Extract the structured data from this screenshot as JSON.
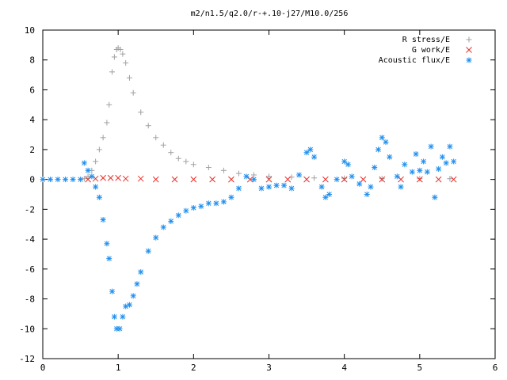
{
  "chart_data": {
    "type": "scatter",
    "title": "m2/n1.5/q2.0/r-+.10-j27/M10.0/256",
    "xlabel": "",
    "ylabel": "",
    "xlim": [
      0,
      6
    ],
    "ylim": [
      -12,
      10
    ],
    "x_ticks": [
      "0",
      "1",
      "2",
      "3",
      "4",
      "5",
      "6"
    ],
    "y_ticks": [
      "-12",
      "-10",
      "-8",
      "-6",
      "-4",
      "-2",
      "0",
      "2",
      "4",
      "6",
      "8",
      "10"
    ],
    "grid": false,
    "legend_position": "top-right",
    "series": [
      {
        "name": "R stress/E",
        "marker": "plus",
        "color": "#a0a0a0",
        "points": [
          [
            0.55,
            0.05
          ],
          [
            0.6,
            0.2
          ],
          [
            0.65,
            0.6
          ],
          [
            0.7,
            1.2
          ],
          [
            0.75,
            2.0
          ],
          [
            0.8,
            2.8
          ],
          [
            0.85,
            3.8
          ],
          [
            0.88,
            5.0
          ],
          [
            0.92,
            7.2
          ],
          [
            0.95,
            8.2
          ],
          [
            0.98,
            8.7
          ],
          [
            1.0,
            8.8
          ],
          [
            1.03,
            8.7
          ],
          [
            1.06,
            8.4
          ],
          [
            1.1,
            7.8
          ],
          [
            1.15,
            6.8
          ],
          [
            1.2,
            5.8
          ],
          [
            1.3,
            4.5
          ],
          [
            1.4,
            3.6
          ],
          [
            1.5,
            2.8
          ],
          [
            1.6,
            2.3
          ],
          [
            1.7,
            1.8
          ],
          [
            1.8,
            1.4
          ],
          [
            1.9,
            1.2
          ],
          [
            2.0,
            1.0
          ],
          [
            2.2,
            0.8
          ],
          [
            2.4,
            0.6
          ],
          [
            2.6,
            0.4
          ],
          [
            2.8,
            0.3
          ],
          [
            3.0,
            0.2
          ],
          [
            3.3,
            0.15
          ],
          [
            3.6,
            0.1
          ],
          [
            4.0,
            0.08
          ],
          [
            4.5,
            0.05
          ],
          [
            5.0,
            0.05
          ],
          [
            5.4,
            0.05
          ]
        ]
      },
      {
        "name": "G work/E",
        "marker": "cross",
        "color": "#e8302a",
        "points": [
          [
            0.6,
            0.0
          ],
          [
            0.7,
            0.05
          ],
          [
            0.8,
            0.1
          ],
          [
            0.9,
            0.1
          ],
          [
            1.0,
            0.1
          ],
          [
            1.1,
            0.05
          ],
          [
            1.3,
            0.05
          ],
          [
            1.5,
            0.0
          ],
          [
            1.75,
            0.0
          ],
          [
            2.0,
            0.0
          ],
          [
            2.25,
            0.0
          ],
          [
            2.5,
            0.0
          ],
          [
            2.75,
            0.0
          ],
          [
            3.0,
            0.0
          ],
          [
            3.25,
            0.0
          ],
          [
            3.5,
            0.0
          ],
          [
            3.75,
            0.0
          ],
          [
            4.0,
            0.0
          ],
          [
            4.25,
            0.0
          ],
          [
            4.5,
            0.0
          ],
          [
            4.75,
            0.0
          ],
          [
            5.0,
            0.0
          ],
          [
            5.25,
            0.0
          ],
          [
            5.45,
            0.0
          ]
        ]
      },
      {
        "name": "Acoustic flux/E",
        "marker": "star",
        "color": "#1f8ff0",
        "points": [
          [
            0.0,
            0.0
          ],
          [
            0.1,
            0.0
          ],
          [
            0.2,
            0.0
          ],
          [
            0.3,
            0.0
          ],
          [
            0.4,
            0.0
          ],
          [
            0.5,
            0.0
          ],
          [
            0.55,
            1.1
          ],
          [
            0.6,
            0.6
          ],
          [
            0.65,
            0.2
          ],
          [
            0.7,
            -0.5
          ],
          [
            0.75,
            -1.2
          ],
          [
            0.8,
            -2.7
          ],
          [
            0.85,
            -4.3
          ],
          [
            0.88,
            -5.3
          ],
          [
            0.92,
            -7.5
          ],
          [
            0.95,
            -9.2
          ],
          [
            0.98,
            -10.0
          ],
          [
            1.02,
            -10.0
          ],
          [
            1.06,
            -9.2
          ],
          [
            1.1,
            -8.5
          ],
          [
            1.15,
            -8.4
          ],
          [
            1.2,
            -7.8
          ],
          [
            1.25,
            -7.0
          ],
          [
            1.3,
            -6.2
          ],
          [
            1.4,
            -4.8
          ],
          [
            1.5,
            -3.9
          ],
          [
            1.6,
            -3.2
          ],
          [
            1.7,
            -2.8
          ],
          [
            1.8,
            -2.4
          ],
          [
            1.9,
            -2.1
          ],
          [
            2.0,
            -1.9
          ],
          [
            2.1,
            -1.8
          ],
          [
            2.2,
            -1.6
          ],
          [
            2.3,
            -1.6
          ],
          [
            2.4,
            -1.5
          ],
          [
            2.5,
            -1.2
          ],
          [
            2.6,
            -0.6
          ],
          [
            2.7,
            0.2
          ],
          [
            2.8,
            0.0
          ],
          [
            2.9,
            -0.6
          ],
          [
            3.0,
            -0.5
          ],
          [
            3.1,
            -0.4
          ],
          [
            3.2,
            -0.4
          ],
          [
            3.3,
            -0.6
          ],
          [
            3.4,
            0.3
          ],
          [
            3.5,
            1.8
          ],
          [
            3.55,
            2.0
          ],
          [
            3.6,
            1.5
          ],
          [
            3.7,
            -0.5
          ],
          [
            3.75,
            -1.2
          ],
          [
            3.8,
            -1.0
          ],
          [
            3.9,
            0.0
          ],
          [
            4.0,
            1.2
          ],
          [
            4.05,
            1.0
          ],
          [
            4.1,
            0.2
          ],
          [
            4.2,
            -0.3
          ],
          [
            4.3,
            -1.0
          ],
          [
            4.35,
            -0.5
          ],
          [
            4.4,
            0.8
          ],
          [
            4.45,
            2.0
          ],
          [
            4.5,
            2.8
          ],
          [
            4.55,
            2.5
          ],
          [
            4.6,
            1.5
          ],
          [
            4.7,
            0.2
          ],
          [
            4.75,
            -0.5
          ],
          [
            4.8,
            1.0
          ],
          [
            4.9,
            0.5
          ],
          [
            4.95,
            1.7
          ],
          [
            5.0,
            0.6
          ],
          [
            5.05,
            1.2
          ],
          [
            5.1,
            0.5
          ],
          [
            5.15,
            2.2
          ],
          [
            5.2,
            -1.2
          ],
          [
            5.25,
            0.7
          ],
          [
            5.3,
            1.5
          ],
          [
            5.35,
            1.1
          ],
          [
            5.4,
            2.2
          ],
          [
            5.45,
            1.2
          ]
        ]
      }
    ]
  }
}
